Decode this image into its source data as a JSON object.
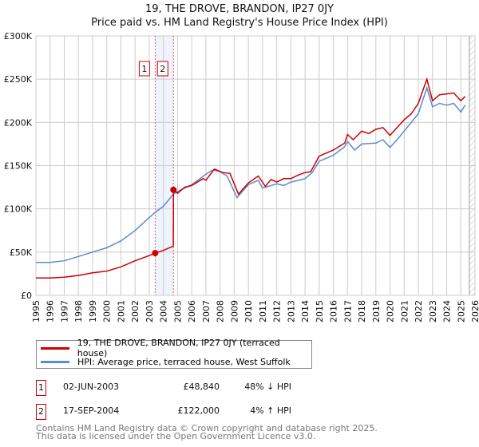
{
  "title_line1": "19, THE DROVE, BRANDON, IP27 0JY",
  "title_line2": "Price paid vs. HM Land Registry's House Price Index (HPI)",
  "chart_data": {
    "type": "line",
    "xlim": [
      1995,
      2026
    ],
    "ylim": [
      0,
      300000
    ],
    "x_ticks": [
      1995,
      1996,
      1997,
      1998,
      1999,
      2000,
      2001,
      2002,
      2003,
      2004,
      2005,
      2006,
      2007,
      2008,
      2009,
      2010,
      2011,
      2012,
      2013,
      2014,
      2015,
      2016,
      2017,
      2018,
      2019,
      2020,
      2021,
      2022,
      2023,
      2024,
      2025,
      2026
    ],
    "y_ticks": [
      0,
      50000,
      100000,
      150000,
      200000,
      250000,
      300000
    ],
    "y_tick_labels": [
      "£0",
      "£50K",
      "£100K",
      "£150K",
      "£200K",
      "£250K",
      "£300K"
    ],
    "grid": true,
    "legend_placement": "below",
    "shaded_period": [
      2003.42,
      2004.71
    ],
    "forecast_hatch_from": 2025.6,
    "series": [
      {
        "name": "19, THE DROVE, BRANDON, IP27 0JY (terraced house)",
        "color": "#cc0000",
        "x": [
          1995,
          1996,
          1997,
          1998,
          1999,
          2000,
          2001,
          2002,
          2003,
          2003.42,
          2004,
          2004.7,
          2004.71,
          2005,
          2005.5,
          2006,
          2006.8,
          2007,
          2007.6,
          2008.2,
          2008.7,
          2009.3,
          2010,
          2010.7,
          2011.2,
          2011.6,
          2012,
          2012.5,
          2013,
          2013.5,
          2014,
          2014.4,
          2015,
          2016,
          2016.8,
          2017,
          2017.4,
          2018,
          2018.5,
          2019,
          2019.5,
          2020,
          2020.5,
          2021,
          2021.5,
          2022,
          2022.6,
          2023,
          2023.5,
          2024,
          2024.5,
          2025,
          2025.3
        ],
        "y": [
          20000,
          20000,
          21000,
          23000,
          26000,
          28000,
          33000,
          40000,
          46000,
          48840,
          52000,
          57000,
          122000,
          118000,
          125000,
          127000,
          135000,
          133000,
          146000,
          142000,
          141000,
          117000,
          130000,
          138000,
          126000,
          134000,
          131000,
          135000,
          135000,
          139000,
          142000,
          143000,
          161000,
          168000,
          176000,
          186000,
          180000,
          190000,
          187000,
          192000,
          194000,
          185000,
          194000,
          203000,
          210000,
          222000,
          250000,
          225000,
          232000,
          233000,
          234000,
          225000,
          230000
        ]
      },
      {
        "name": "HPI: Average price, terraced house, West Suffolk",
        "color": "#5b8bd0",
        "x": [
          1995,
          1996,
          1997,
          1998,
          1999,
          2000,
          2001,
          2002,
          2003,
          2003.5,
          2004,
          2004.7,
          2005,
          2006,
          2007,
          2007.5,
          2008,
          2008.5,
          2009.2,
          2010,
          2010.7,
          2011,
          2012,
          2012.5,
          2013,
          2014,
          2014.5,
          2015,
          2016,
          2016.8,
          2017,
          2017.5,
          2018,
          2019,
          2019.5,
          2020,
          2020.5,
          2021,
          2022,
          2022.6,
          2023,
          2023.5,
          2024,
          2024.5,
          2025,
          2025.3
        ],
        "y": [
          38000,
          38000,
          40000,
          45000,
          50000,
          55000,
          63000,
          75000,
          90000,
          97000,
          103000,
          117000,
          120000,
          128000,
          140000,
          145000,
          143000,
          138000,
          113000,
          128000,
          133000,
          124000,
          129000,
          127000,
          131000,
          135000,
          142000,
          155000,
          162000,
          172000,
          178000,
          168000,
          175000,
          176000,
          180000,
          171000,
          180000,
          190000,
          210000,
          240000,
          218000,
          222000,
          220000,
          222000,
          212000,
          220000
        ]
      }
    ],
    "markers": [
      {
        "label": "1",
        "x": 2003.42,
        "y": 48840
      },
      {
        "label": "2",
        "x": 2004.71,
        "y": 122000
      }
    ]
  },
  "legend": {
    "property": "19, THE DROVE, BRANDON, IP27 0JY (terraced house)",
    "hpi": "HPI: Average price, terraced house, West Suffolk"
  },
  "transactions": [
    {
      "num": "1",
      "date": "02-JUN-2003",
      "price": "£48,840",
      "hpi": "48% ↓ HPI"
    },
    {
      "num": "2",
      "date": "17-SEP-2004",
      "price": "£122,000",
      "hpi": "4% ↑ HPI"
    }
  ],
  "footer_line1": "Contains HM Land Registry data © Crown copyright and database right 2025.",
  "footer_line2": "This data is licensed under the Open Government Licence v3.0."
}
